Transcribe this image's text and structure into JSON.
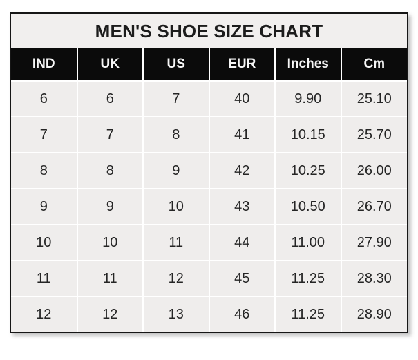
{
  "title": "MEN'S SHOE SIZE CHART",
  "colors": {
    "frame_border": "#161616",
    "title_background": "#f1efee",
    "header_background": "#0b0b0b",
    "header_text": "#f7f7f7",
    "cell_background": "#efedec",
    "cell_text": "#252525",
    "gridline": "#ffffff"
  },
  "table": {
    "headers": [
      "IND",
      "UK",
      "US",
      "EUR",
      "Inches",
      "Cm"
    ],
    "rows": [
      [
        "6",
        "6",
        "7",
        "40",
        "9.90",
        "25.10"
      ],
      [
        "7",
        "7",
        "8",
        "41",
        "10.15",
        "25.70"
      ],
      [
        "8",
        "8",
        "9",
        "42",
        "10.25",
        "26.00"
      ],
      [
        "9",
        "9",
        "10",
        "43",
        "10.50",
        "26.70"
      ],
      [
        "10",
        "10",
        "11",
        "44",
        "11.00",
        "27.90"
      ],
      [
        "11",
        "11",
        "12",
        "45",
        "11.25",
        "28.30"
      ],
      [
        "12",
        "12",
        "13",
        "46",
        "11.25",
        "28.90"
      ]
    ]
  },
  "chart_data": {
    "type": "table",
    "title": "MEN'S SHOE SIZE CHART",
    "columns": [
      "IND",
      "UK",
      "US",
      "EUR",
      "Inches",
      "Cm"
    ],
    "rows": [
      [
        6,
        6,
        7,
        40,
        9.9,
        25.1
      ],
      [
        7,
        7,
        8,
        41,
        10.15,
        25.7
      ],
      [
        8,
        8,
        9,
        42,
        10.25,
        26.0
      ],
      [
        9,
        9,
        10,
        43,
        10.5,
        26.7
      ],
      [
        10,
        10,
        11,
        44,
        11.0,
        27.9
      ],
      [
        11,
        11,
        12,
        45,
        11.25,
        28.3
      ],
      [
        12,
        12,
        13,
        46,
        11.25,
        28.9
      ]
    ],
    "layout": {
      "grid": true,
      "gridline_color": "white",
      "header_style": "black-background-white-text"
    }
  }
}
